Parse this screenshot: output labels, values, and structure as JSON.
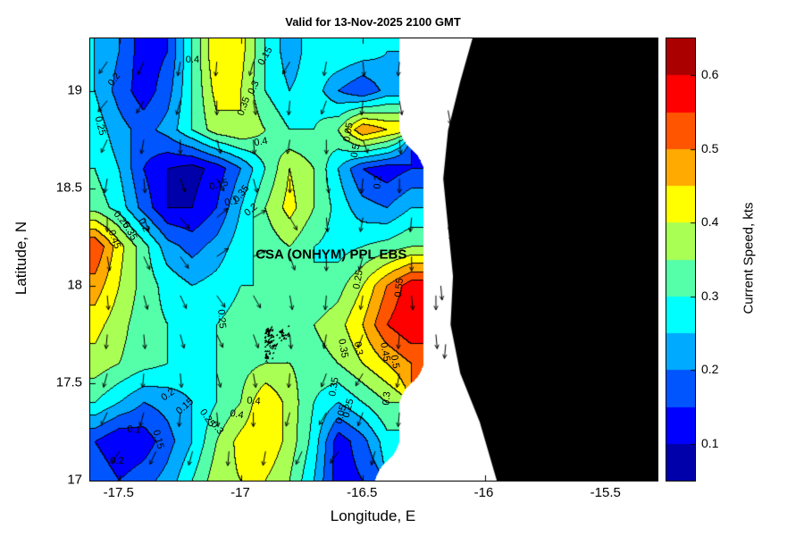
{
  "title": "Valid for 13-Nov-2025 2100 GMT",
  "axes": {
    "xlabel": "Longitude, E",
    "ylabel": "Latitude, N",
    "xtick_labels": [
      "-17.5",
      "-17",
      "-16.5",
      "-16",
      "-15.5"
    ],
    "xtick_values": [
      -17.5,
      -17,
      -16.5,
      -16,
      -15.5
    ],
    "ytick_labels": [
      "17",
      "17.5",
      "18",
      "18.5",
      "19"
    ],
    "ytick_values": [
      17,
      17.5,
      18,
      18.5,
      19
    ]
  },
  "colorbar": {
    "label": "Current Speed, kts",
    "tick_labels": [
      "0.6",
      "0.5",
      "0.4",
      "0.3",
      "0.2",
      "0.1"
    ],
    "tick_values": [
      0.6,
      0.5,
      0.4,
      0.3,
      0.2,
      0.1
    ],
    "vmin": 0.05,
    "vmax": 0.65,
    "colormap": "jet"
  },
  "annotation": {
    "text": "CSA (ONHYM) PPL EBS",
    "lon": -16.63,
    "lat": 18.16,
    "marker": "+",
    "marker_lon": -16.12,
    "marker_lat": 18.17
  },
  "land_color": "#000000",
  "sea_nodata_color": "#ffffff",
  "chart_data": {
    "type": "heatmap",
    "title": "Valid for 13-Nov-2025 2100 GMT",
    "xlabel": "Longitude, E",
    "ylabel": "Latitude, N",
    "units": "kts",
    "colormap": "jet",
    "level_step": 0.05,
    "xlim": [
      -17.62,
      -15.29
    ],
    "ylim": [
      17.0,
      19.27
    ],
    "lon": [
      -17.6,
      -17.5,
      -17.4,
      -17.3,
      -17.2,
      -17.1,
      -17.0,
      -16.9,
      -16.8,
      -16.7,
      -16.6,
      -16.5,
      -16.4,
      -16.3,
      -16.2
    ],
    "lat": [
      19.2,
      19.0,
      18.8,
      18.6,
      18.4,
      18.2,
      18.0,
      17.8,
      17.6,
      17.4,
      17.2,
      17.0
    ],
    "values": [
      [
        0.25,
        0.2,
        0.12,
        0.15,
        0.3,
        0.45,
        0.42,
        0.3,
        0.22,
        0.28,
        0.3,
        0.28,
        0.25,
        null,
        null
      ],
      [
        0.25,
        0.18,
        0.12,
        0.18,
        0.3,
        0.42,
        0.4,
        0.3,
        0.25,
        0.28,
        0.2,
        0.15,
        0.22,
        null,
        null
      ],
      [
        0.28,
        0.22,
        0.18,
        0.22,
        0.3,
        0.38,
        0.4,
        0.35,
        0.3,
        0.3,
        0.35,
        0.5,
        0.45,
        null,
        null
      ],
      [
        0.3,
        0.25,
        0.15,
        0.1,
        0.08,
        0.12,
        0.2,
        0.3,
        0.4,
        0.35,
        0.25,
        0.15,
        0.12,
        0.15,
        null
      ],
      [
        0.33,
        0.28,
        0.18,
        0.1,
        0.1,
        0.15,
        0.25,
        0.35,
        0.42,
        0.35,
        0.28,
        0.22,
        0.2,
        0.25,
        null
      ],
      [
        0.55,
        0.42,
        0.32,
        0.22,
        0.18,
        0.22,
        0.28,
        0.32,
        0.35,
        0.3,
        0.28,
        0.3,
        0.32,
        0.35,
        null
      ],
      [
        0.48,
        0.4,
        0.33,
        0.28,
        0.25,
        0.27,
        0.3,
        0.3,
        0.3,
        0.3,
        0.33,
        0.4,
        0.5,
        0.58,
        null
      ],
      [
        0.42,
        0.37,
        0.32,
        0.3,
        0.27,
        0.3,
        0.32,
        0.35,
        0.35,
        0.35,
        0.38,
        0.45,
        0.55,
        0.6,
        null
      ],
      [
        0.38,
        0.35,
        0.32,
        0.3,
        0.28,
        0.3,
        0.33,
        0.35,
        0.35,
        0.33,
        0.35,
        0.4,
        0.45,
        0.5,
        null
      ],
      [
        0.3,
        0.25,
        0.2,
        0.22,
        0.25,
        0.3,
        0.35,
        0.45,
        0.38,
        0.3,
        0.25,
        0.3,
        0.35,
        null,
        null
      ],
      [
        0.15,
        0.1,
        0.12,
        0.18,
        0.25,
        0.35,
        0.42,
        0.45,
        0.38,
        0.28,
        0.12,
        0.18,
        0.28,
        null,
        null
      ],
      [
        0.2,
        0.15,
        0.18,
        0.22,
        0.3,
        0.38,
        0.4,
        0.4,
        0.35,
        0.25,
        0.12,
        0.15,
        null,
        null,
        null
      ]
    ]
  },
  "coastline": [
    [
      -16.05,
      19.27
    ],
    [
      -16.1,
      19.05
    ],
    [
      -16.15,
      18.8
    ],
    [
      -16.17,
      18.55
    ],
    [
      -16.15,
      18.3
    ],
    [
      -16.13,
      18.05
    ],
    [
      -16.14,
      17.8
    ],
    [
      -16.1,
      17.55
    ],
    [
      -16.02,
      17.3
    ],
    [
      -15.95,
      17.0
    ]
  ],
  "contour_labels": [
    {
      "text": "0.4",
      "lon": -17.2,
      "lat": 19.16,
      "rot": 0
    },
    {
      "text": "0.2",
      "lon": -17.52,
      "lat": 19.06,
      "rot": -55
    },
    {
      "text": "0.25",
      "lon": -17.58,
      "lat": 18.82,
      "rot": 75
    },
    {
      "text": "0.15",
      "lon": -16.9,
      "lat": 19.18,
      "rot": -60
    },
    {
      "text": "0.3",
      "lon": -16.95,
      "lat": 19.02,
      "rot": -65
    },
    {
      "text": "0.35",
      "lon": -16.99,
      "lat": 18.92,
      "rot": -70
    },
    {
      "text": "0.4",
      "lon": -16.92,
      "lat": 18.74,
      "rot": -10
    },
    {
      "text": "0.05",
      "lon": -16.56,
      "lat": 18.79,
      "rot": -80
    },
    {
      "text": "0.5",
      "lon": -16.53,
      "lat": 18.69,
      "rot": -80
    },
    {
      "text": "0.2",
      "lon": -16.44,
      "lat": 18.53,
      "rot": -85
    },
    {
      "text": "0.15",
      "lon": -17.09,
      "lat": 18.52,
      "rot": -15
    },
    {
      "text": "0.1",
      "lon": -17.04,
      "lat": 18.43,
      "rot": -10
    },
    {
      "text": "0.2",
      "lon": -16.96,
      "lat": 18.39,
      "rot": -40
    },
    {
      "text": "0.35",
      "lon": -17.0,
      "lat": 18.47,
      "rot": -50
    },
    {
      "text": "0.25",
      "lon": -17.49,
      "lat": 18.34,
      "rot": 50
    },
    {
      "text": "0.35",
      "lon": -17.46,
      "lat": 18.28,
      "rot": 60
    },
    {
      "text": "0.45",
      "lon": -17.52,
      "lat": 18.24,
      "rot": 70
    },
    {
      "text": "0.2",
      "lon": -17.4,
      "lat": 18.31,
      "rot": 65
    },
    {
      "text": "0.25",
      "lon": -17.08,
      "lat": 17.83,
      "rot": 85
    },
    {
      "text": "0.25",
      "lon": -16.52,
      "lat": 18.03,
      "rot": -80
    },
    {
      "text": "0.55",
      "lon": -16.35,
      "lat": 17.99,
      "rot": -85
    },
    {
      "text": "0.35",
      "lon": -16.58,
      "lat": 17.68,
      "rot": 80
    },
    {
      "text": "0.3",
      "lon": -16.52,
      "lat": 17.68,
      "rot": 80
    },
    {
      "text": "0.45",
      "lon": -16.41,
      "lat": 17.66,
      "rot": 80
    },
    {
      "text": "0.5",
      "lon": -16.37,
      "lat": 17.61,
      "rot": 80
    },
    {
      "text": "0.2",
      "lon": -17.3,
      "lat": 17.44,
      "rot": -35
    },
    {
      "text": "0.15",
      "lon": -17.23,
      "lat": 17.38,
      "rot": -40
    },
    {
      "text": "0.25",
      "lon": -17.14,
      "lat": 17.32,
      "rot": 55
    },
    {
      "text": "0.3",
      "lon": -17.1,
      "lat": 17.27,
      "rot": 50
    },
    {
      "text": "0.4",
      "lon": -17.02,
      "lat": 17.34,
      "rot": 10
    },
    {
      "text": "0.1",
      "lon": -17.44,
      "lat": 17.26,
      "rot": 5
    },
    {
      "text": "0.15",
      "lon": -17.34,
      "lat": 17.21,
      "rot": 75
    },
    {
      "text": "0.2",
      "lon": -17.51,
      "lat": 17.1,
      "rot": 0
    },
    {
      "text": "0.05",
      "lon": -16.59,
      "lat": 17.34,
      "rot": -75
    },
    {
      "text": "0.25",
      "lon": -16.56,
      "lat": 17.37,
      "rot": -75
    },
    {
      "text": "0.35",
      "lon": -16.62,
      "lat": 17.48,
      "rot": -80
    },
    {
      "text": "0.3",
      "lon": -16.4,
      "lat": 17.42,
      "rot": -85
    },
    {
      "text": "0.4",
      "lon": -16.95,
      "lat": 17.41,
      "rot": 5
    }
  ],
  "quiver": [
    [
      -17.55,
      19.15,
      -125
    ],
    [
      -17.4,
      19.15,
      -115
    ],
    [
      -17.25,
      19.15,
      -100
    ],
    [
      -17.1,
      19.15,
      -95
    ],
    [
      -16.95,
      19.15,
      -105
    ],
    [
      -16.8,
      19.15,
      -120
    ],
    [
      -16.65,
      19.15,
      -100
    ],
    [
      -16.5,
      19.15,
      -85
    ],
    [
      -16.35,
      19.15,
      -95
    ],
    [
      -17.55,
      18.95,
      -130
    ],
    [
      -17.4,
      18.95,
      -120
    ],
    [
      -17.25,
      18.95,
      -105
    ],
    [
      -17.1,
      18.95,
      -90
    ],
    [
      -16.95,
      18.95,
      -80
    ],
    [
      -16.8,
      18.95,
      -95
    ],
    [
      -16.65,
      18.95,
      -110
    ],
    [
      -16.5,
      18.95,
      -95
    ],
    [
      -16.35,
      18.95,
      -80
    ],
    [
      -17.55,
      18.75,
      -115
    ],
    [
      -17.4,
      18.75,
      -100
    ],
    [
      -17.25,
      18.75,
      -90
    ],
    [
      -17.1,
      18.75,
      -75
    ],
    [
      -16.95,
      18.75,
      -85
    ],
    [
      -16.8,
      18.75,
      -100
    ],
    [
      -16.65,
      18.75,
      -90
    ],
    [
      -16.5,
      18.75,
      -70
    ],
    [
      -16.35,
      18.75,
      -85
    ],
    [
      -17.55,
      18.55,
      -100
    ],
    [
      -17.4,
      18.55,
      -85
    ],
    [
      -17.25,
      18.55,
      -70
    ],
    [
      -17.1,
      18.55,
      -60
    ],
    [
      -16.95,
      18.55,
      -75
    ],
    [
      -16.8,
      18.55,
      -90
    ],
    [
      -16.65,
      18.55,
      -80
    ],
    [
      -16.5,
      18.55,
      -95
    ],
    [
      -16.35,
      18.55,
      -90
    ],
    [
      -17.55,
      18.35,
      -90
    ],
    [
      -17.4,
      18.35,
      -70
    ],
    [
      -17.25,
      18.35,
      -50
    ],
    [
      -17.1,
      18.35,
      40
    ],
    [
      -16.95,
      18.35,
      30
    ],
    [
      -16.8,
      18.35,
      -60
    ],
    [
      -16.65,
      18.35,
      -85
    ],
    [
      -16.5,
      18.35,
      -100
    ],
    [
      -16.3,
      18.35,
      -95
    ],
    [
      -17.55,
      18.15,
      -80
    ],
    [
      -17.4,
      18.15,
      -65
    ],
    [
      -17.25,
      18.15,
      -55
    ],
    [
      -17.1,
      18.15,
      35
    ],
    [
      -16.95,
      18.15,
      25
    ],
    [
      -16.8,
      18.15,
      -70
    ],
    [
      -16.65,
      18.15,
      -90
    ],
    [
      -16.5,
      18.15,
      -105
    ],
    [
      -16.3,
      18.15,
      -90
    ],
    [
      -17.55,
      17.95,
      -85
    ],
    [
      -17.4,
      17.95,
      -75
    ],
    [
      -17.25,
      17.95,
      -65
    ],
    [
      -17.1,
      17.95,
      -55
    ],
    [
      -16.95,
      17.95,
      -60
    ],
    [
      -16.8,
      17.95,
      -80
    ],
    [
      -16.65,
      17.95,
      -95
    ],
    [
      -16.5,
      17.95,
      -100
    ],
    [
      -16.3,
      17.95,
      -85
    ],
    [
      -16.2,
      17.95,
      -90
    ],
    [
      -17.55,
      17.75,
      -95
    ],
    [
      -17.4,
      17.75,
      -85
    ],
    [
      -17.25,
      17.75,
      -75
    ],
    [
      -17.1,
      17.75,
      -65
    ],
    [
      -16.95,
      17.75,
      -70
    ],
    [
      -16.8,
      17.75,
      -85
    ],
    [
      -16.65,
      17.75,
      -100
    ],
    [
      -16.5,
      17.75,
      -110
    ],
    [
      -16.35,
      17.75,
      -95
    ],
    [
      -16.2,
      17.75,
      -85
    ],
    [
      -17.55,
      17.55,
      -105
    ],
    [
      -17.4,
      17.55,
      -95
    ],
    [
      -17.25,
      17.55,
      -85
    ],
    [
      -17.1,
      17.55,
      -75
    ],
    [
      -16.95,
      17.55,
      -80
    ],
    [
      -16.8,
      17.55,
      -95
    ],
    [
      -16.65,
      17.55,
      -110
    ],
    [
      -16.5,
      17.55,
      -120
    ],
    [
      -16.35,
      17.55,
      -100
    ],
    [
      -17.55,
      17.35,
      -115
    ],
    [
      -17.4,
      17.35,
      -105
    ],
    [
      -17.25,
      17.35,
      -95
    ],
    [
      -17.1,
      17.35,
      -85
    ],
    [
      -16.95,
      17.35,
      -90
    ],
    [
      -16.8,
      17.35,
      -105
    ],
    [
      -16.65,
      17.35,
      -120
    ],
    [
      -16.5,
      17.35,
      -110
    ],
    [
      -16.35,
      17.35,
      -95
    ],
    [
      -17.5,
      17.15,
      -125
    ],
    [
      -17.35,
      17.15,
      -115
    ],
    [
      -17.2,
      17.15,
      -105
    ],
    [
      -17.05,
      17.15,
      -95
    ],
    [
      -16.9,
      17.15,
      -100
    ],
    [
      -16.75,
      17.15,
      -115
    ],
    [
      -16.6,
      17.15,
      -125
    ],
    [
      -16.45,
      17.15,
      -105
    ],
    [
      -16.15,
      18.9,
      -80
    ],
    [
      -16.15,
      18.3,
      -75
    ],
    [
      -16.18,
      18.0,
      -85
    ],
    [
      -16.16,
      17.7,
      -95
    ]
  ]
}
